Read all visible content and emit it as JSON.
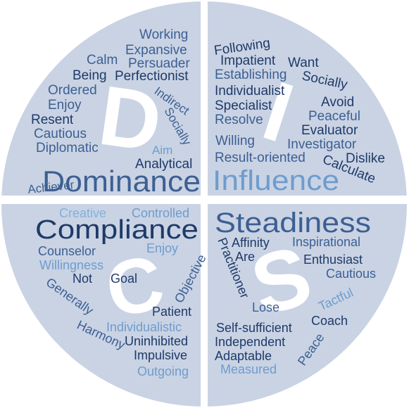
{
  "colors": {
    "disc": "#c9d3e4",
    "gap": "#ffffff",
    "letter": "#ffffff",
    "dark": "#1f3a68",
    "mid": "#3d5f92",
    "light": "#6f9ccc",
    "pale": "#7fb2dc"
  },
  "quadrants": {
    "dominance": {
      "letter": "D",
      "heading": "Dominance",
      "words": [
        "Working",
        "Expansive",
        "Calm",
        "Persuader",
        "Being",
        "Perfectionist",
        "Ordered",
        "Indirect",
        "Enjoy",
        "Socially",
        "Resent",
        "Cautious",
        "Diplomatic",
        "Aim",
        "Analytical",
        "Achiever"
      ]
    },
    "influence": {
      "letter": "I",
      "heading": "Influence",
      "words": [
        "Following",
        "Impatient",
        "Want",
        "Establishing",
        "Socially",
        "Individualist",
        "Avoid",
        "Specialist",
        "Peaceful",
        "Resolve",
        "Evaluator",
        "Willing",
        "Investigator",
        "Result-oriented",
        "Dislike",
        "Calculate"
      ]
    },
    "compliance": {
      "letter": "C",
      "heading": "Compliance",
      "words": [
        "Creative",
        "Controlled",
        "Enjoy",
        "Counselor",
        "Willingness",
        "Objective",
        "Not",
        "Goal",
        "Generally",
        "Patient",
        "Harmony",
        "Individualistic",
        "Uninhibited",
        "Impulsive",
        "Outgoing"
      ]
    },
    "steadiness": {
      "letter": "S",
      "heading": "Steadiness",
      "words": [
        "Affinity",
        "Inspirational",
        "Are",
        "Practitioner",
        "Enthusiast",
        "Cautious",
        "Tactful",
        "Lose",
        "Coach",
        "Self-sufficient",
        "Independent",
        "Peace",
        "Adaptable",
        "Measured"
      ]
    }
  }
}
